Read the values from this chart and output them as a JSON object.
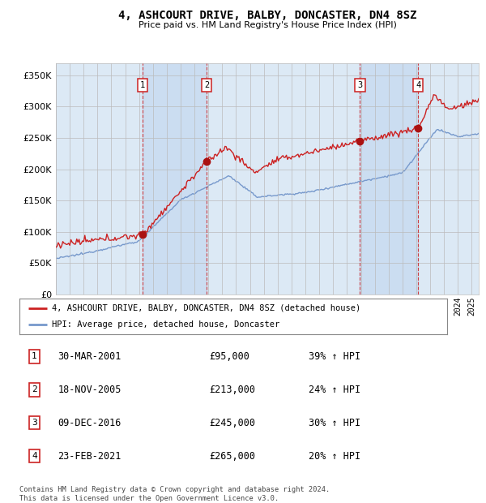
{
  "title": "4, ASHCOURT DRIVE, BALBY, DONCASTER, DN4 8SZ",
  "subtitle": "Price paid vs. HM Land Registry's House Price Index (HPI)",
  "xlim_start": 1995.0,
  "xlim_end": 2025.5,
  "ylim": [
    0,
    370000
  ],
  "yticks": [
    0,
    50000,
    100000,
    150000,
    200000,
    250000,
    300000,
    350000
  ],
  "sale_dates": [
    2001.247,
    2005.886,
    2016.938,
    2021.142
  ],
  "sale_prices": [
    95000,
    213000,
    245000,
    265000
  ],
  "sale_labels": [
    "1",
    "2",
    "3",
    "4"
  ],
  "legend_label_red": "4, ASHCOURT DRIVE, BALBY, DONCASTER, DN4 8SZ (detached house)",
  "legend_label_blue": "HPI: Average price, detached house, Doncaster",
  "table_rows": [
    [
      "1",
      "30-MAR-2001",
      "£95,000",
      "39% ↑ HPI"
    ],
    [
      "2",
      "18-NOV-2005",
      "£213,000",
      "24% ↑ HPI"
    ],
    [
      "3",
      "09-DEC-2016",
      "£245,000",
      "30% ↑ HPI"
    ],
    [
      "4",
      "23-FEB-2021",
      "£265,000",
      "20% ↑ HPI"
    ]
  ],
  "footer": "Contains HM Land Registry data © Crown copyright and database right 2024.\nThis data is licensed under the Open Government Licence v3.0.",
  "red_color": "#cc2222",
  "blue_color": "#7799cc",
  "bg_color": "#dce9f5",
  "shade_color": "#c5d8f0",
  "grid_color": "#bbbbbb",
  "vline_color": "#cc2222",
  "font_family": "monospace"
}
